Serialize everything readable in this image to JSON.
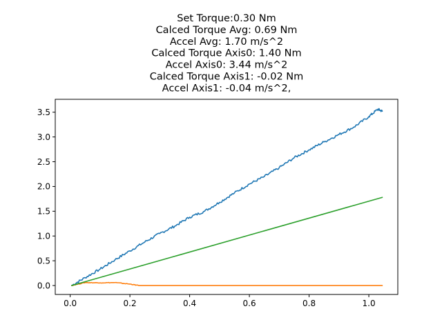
{
  "chart_data": {
    "type": "line",
    "title_lines": [
      "Set Torque:0.30 Nm",
      "Calced Torque Avg: 0.69 Nm",
      "Accel Avg: 1.70 m/s^2",
      "Calced Torque Axis0: 1.40 Nm",
      "Accel Axis0: 3.44 m/s^2",
      "Calced Torque Axis1: -0.02 Nm",
      "Accel Axis1: -0.04 m/s^2,"
    ],
    "xlabel": "",
    "ylabel": "",
    "xlim": [
      -0.05,
      1.097
    ],
    "ylim": [
      -0.18,
      3.76
    ],
    "xticks": [
      {
        "value": 0.0,
        "label": "0.0"
      },
      {
        "value": 0.2,
        "label": "0.2"
      },
      {
        "value": 0.4,
        "label": "0.4"
      },
      {
        "value": 0.6,
        "label": "0.6"
      },
      {
        "value": 0.8,
        "label": "0.8"
      },
      {
        "value": 1.0,
        "label": "1.0"
      }
    ],
    "yticks": [
      {
        "value": 0.0,
        "label": "0.0"
      },
      {
        "value": 0.5,
        "label": "0.5"
      },
      {
        "value": 1.0,
        "label": "1.0"
      },
      {
        "value": 1.5,
        "label": "1.5"
      },
      {
        "value": 2.0,
        "label": "2.0"
      },
      {
        "value": 2.5,
        "label": "2.5"
      },
      {
        "value": 3.0,
        "label": "3.0"
      },
      {
        "value": 3.5,
        "label": "3.5"
      }
    ],
    "grid": false,
    "legend": "none",
    "series": [
      {
        "color": "#1f77b4",
        "points": [
          [
            0.005,
            0.0
          ],
          [
            0.05,
            0.16
          ],
          [
            0.1,
            0.33
          ],
          [
            0.15,
            0.52
          ],
          [
            0.2,
            0.7
          ],
          [
            0.25,
            0.88
          ],
          [
            0.3,
            1.05
          ],
          [
            0.35,
            1.2
          ],
          [
            0.4,
            1.38
          ],
          [
            0.45,
            1.5
          ],
          [
            0.5,
            1.68
          ],
          [
            0.55,
            1.87
          ],
          [
            0.6,
            2.05
          ],
          [
            0.65,
            2.2
          ],
          [
            0.7,
            2.38
          ],
          [
            0.75,
            2.58
          ],
          [
            0.8,
            2.74
          ],
          [
            0.85,
            2.9
          ],
          [
            0.9,
            3.05
          ],
          [
            0.95,
            3.2
          ],
          [
            1.0,
            3.41
          ],
          [
            1.03,
            3.56
          ],
          [
            1.045,
            3.52
          ]
        ]
      },
      {
        "color": "#ff7f0e",
        "points": [
          [
            0.005,
            0.0
          ],
          [
            0.05,
            0.06
          ],
          [
            0.1,
            0.055
          ],
          [
            0.15,
            0.06
          ],
          [
            0.2,
            0.03
          ],
          [
            0.23,
            0.0
          ],
          [
            1.045,
            0.0
          ]
        ]
      },
      {
        "color": "#2ca02c",
        "points": [
          [
            0.005,
            0.0
          ],
          [
            1.045,
            1.78
          ]
        ]
      }
    ]
  }
}
